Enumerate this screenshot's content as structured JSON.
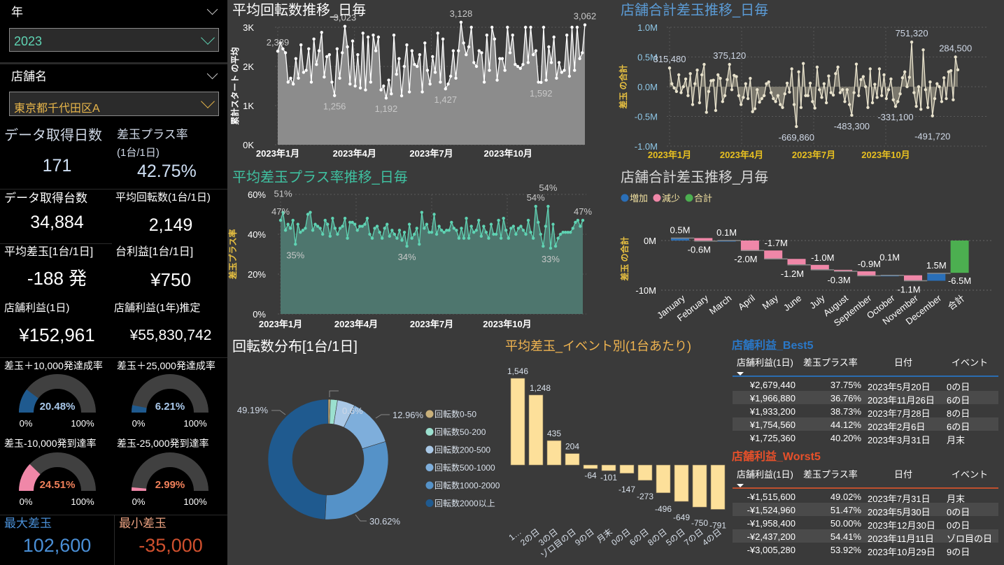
{
  "filters": {
    "year": {
      "label": "年",
      "value": "2023"
    },
    "store": {
      "label": "店舗名",
      "value": "東京都千代田区A"
    }
  },
  "kpis": {
    "days": {
      "label": "データ取得日数",
      "value": "171"
    },
    "plus_rate": {
      "label": "差玉プラス率",
      "sublabel": "(1台/1日)",
      "value": "42.75%"
    },
    "machines": {
      "label": "データ取得台数",
      "value": "34,884"
    },
    "avg_spins": {
      "label": "平均回転数(1台/1日)",
      "value": "2,149"
    },
    "avg_diff": {
      "label": "平均差玉[1台/1日]",
      "value": "-188 発"
    },
    "machine_profit": {
      "label": "台利益[1台/1日]",
      "value": "¥750"
    },
    "store_profit_day": {
      "label": "店舗利益(1日)",
      "value": "¥152,961"
    },
    "store_profit_year": {
      "label": "店舗利益(1年)推定",
      "value": "¥55,830,742"
    }
  },
  "gauges": [
    {
      "title": "差玉＋10,000発達成率",
      "value": "20.48%",
      "fraction": 0.2048,
      "color": "#1f5a8f",
      "text_color": "#a9c8ea",
      "min": "0%",
      "max": "100%"
    },
    {
      "title": "差玉＋25,000発達成率",
      "value": "6.21%",
      "fraction": 0.0621,
      "color": "#1f5a8f",
      "text_color": "#a9c8ea",
      "min": "0%",
      "max": "100%"
    },
    {
      "title": "差玉-10,000発到達率",
      "value": "24.51%",
      "fraction": 0.2451,
      "color": "#f087a8",
      "text_color": "#f0805a",
      "min": "0%",
      "max": "100%"
    },
    {
      "title": "差玉-25,000発到達率",
      "value": "2.99%",
      "fraction": 0.0299,
      "color": "#f087a8",
      "text_color": "#f0805a",
      "min": "0%",
      "max": "100%"
    }
  ],
  "extremes": {
    "max": {
      "label": "最大差玉",
      "value": "102,600"
    },
    "min": {
      "label": "最小差玉",
      "value": "-35,000"
    }
  },
  "chart_data": [
    {
      "type": "line",
      "title": "平均回転数推移_日毎",
      "ylabel": "累計スタート の平均",
      "ylim": [
        0,
        3
      ],
      "yticks": [
        {
          "v": 0,
          "label": "0K"
        },
        {
          "v": 1,
          "label": "1K"
        },
        {
          "v": 2,
          "label": "2K"
        },
        {
          "v": 3,
          "label": "3K"
        }
      ],
      "xticks": [
        {
          "month": 1,
          "label": "2023年1月"
        },
        {
          "month": 4,
          "label": "2023年4月"
        },
        {
          "month": 7,
          "label": "2023年7月"
        },
        {
          "month": 10,
          "label": "2023年10月"
        }
      ],
      "values": [
        2.39,
        2.6,
        2.45,
        2.35,
        1.6,
        1.7,
        1.55,
        2.2,
        1.7,
        2.55,
        1.85,
        1.9,
        2.45,
        1.6,
        2.7,
        2.05,
        2.4,
        2.87,
        1.73,
        2.25,
        2.3,
        1.6,
        1.256,
        2.45,
        1.7,
        2.35,
        3.023,
        2.5,
        1.55,
        2.65,
        1.5,
        2.3,
        1.45,
        2.85,
        1.4,
        2.75,
        1.6,
        2.8,
        2.4,
        2.75,
        1.4,
        1.5,
        1.192,
        1.65,
        1.3,
        2.8,
        1.8,
        2.2,
        1.25,
        2.0,
        2.55,
        1.35,
        2.4,
        2.05,
        2.0,
        2.3,
        1.35,
        2.6,
        1.9,
        1.55,
        2.25,
        1.85,
        2.85,
        1.6,
        2.7,
        1.427,
        1.55,
        1.75,
        2.4,
        1.7,
        2.4,
        3.128,
        2.6,
        2.3,
        2.5,
        3.0,
        2.1,
        2.0,
        2.4,
        2.35,
        1.6,
        2.8,
        1.9,
        3.0,
        2.7,
        1.65,
        2.2,
        2.2,
        1.9,
        3.0,
        2.35,
        2.8,
        2.05,
        2.0,
        1.95,
        2.05,
        3.0,
        2.1,
        3.0,
        2.3,
        2.4,
        1.6,
        1.592,
        3.0,
        1.65,
        2.5,
        2.1,
        2.75,
        1.7,
        2.1,
        1.85,
        1.9,
        2.8,
        1.75,
        3.0,
        1.9,
        3.0,
        2.2,
        2.35,
        3.062
      ],
      "annotations": [
        {
          "i": 0,
          "label": "2,389"
        },
        {
          "i": 26,
          "label": "3,023"
        },
        {
          "i": 22,
          "label": "1,256"
        },
        {
          "i": 42,
          "label": "1,192"
        },
        {
          "i": 65,
          "label": "1,427"
        },
        {
          "i": 71,
          "label": "3,128"
        },
        {
          "i": 102,
          "label": "1,592"
        },
        {
          "i": 119,
          "label": "3,062"
        }
      ],
      "colors": {
        "line": "#ffffff",
        "fill": "#8c8c8c",
        "title": "#ffffff",
        "label": "#c8c8c8",
        "xtick": "#ffffff"
      }
    },
    {
      "type": "line",
      "title": "店舗合計差玉推移_日毎",
      "ylabel": "差玉 の合計",
      "ylim": [
        -1,
        1
      ],
      "yticks": [
        {
          "v": -1,
          "label": "-1.0M"
        },
        {
          "v": -0.5,
          "label": "-0.5M"
        },
        {
          "v": 0,
          "label": "0.0M"
        },
        {
          "v": 0.5,
          "label": "0.5M"
        },
        {
          "v": 1,
          "label": "1.0M"
        }
      ],
      "xticks": [
        {
          "month": 1,
          "label": "2023年1月"
        },
        {
          "month": 4,
          "label": "2023年4月"
        },
        {
          "month": 7,
          "label": "2023年7月"
        },
        {
          "month": 10,
          "label": "2023年10月"
        }
      ],
      "values": [
        0.315,
        0.05,
        -0.02,
        -0.08,
        0.2,
        -0.1,
        0.0,
        0.13,
        -0.15,
        0.22,
        -0.3,
        0.05,
        0.28,
        -0.27,
        0.2,
        0.375,
        -0.43,
        -0.08,
        0.1,
        0.11,
        -0.4,
        0.2,
        0.14,
        -0.25,
        -0.15,
        0.12,
        0.375,
        -0.05,
        0.19,
        0.17,
        -0.15,
        -0.3,
        -0.18,
        0.05,
        -0.2,
        0.14,
        -0.42,
        -0.37,
        -0.05,
        -0.26,
        -0.2,
        -0.15,
        0.05,
        0.08,
        -0.1,
        -0.2,
        -0.25,
        -0.15,
        -0.3,
        -0.35,
        -0.12,
        0.06,
        -0.09,
        0.3,
        -0.3,
        -0.67,
        0.25,
        -0.35,
        0.39,
        -0.15,
        -0.15,
        0.06,
        -0.25,
        -0.36,
        0.33,
        -0.05,
        -0.18,
        0.05,
        -0.27,
        0.18,
        -0.1,
        -0.14,
        0.22,
        0.33,
        -0.1,
        -0.05,
        -0.25,
        -0.05,
        -0.3,
        -0.48,
        -0.1,
        0.38,
        -0.15,
        0.12,
        0.17,
        0.0,
        -0.35,
        0.3,
        -0.27,
        0.04,
        -0.18,
        0.3,
        -0.15,
        0.2,
        -0.2,
        -0.05,
        0.13,
        -0.22,
        -0.331,
        -0.25,
        -0.12,
        0.15,
        0.25,
        0.0,
        0.16,
        0.751,
        -0.1,
        -0.33,
        0.0,
        -0.38,
        0.62,
        -0.05,
        -0.35,
        0.08,
        -0.49,
        -0.2,
        0.05,
        0.0,
        -0.25,
        0.15,
        -0.2,
        0.25,
        0.27,
        -0.22,
        0.5,
        0.2845
      ],
      "annotations": [
        {
          "i": 0,
          "label": "315,480"
        },
        {
          "i": 26,
          "label": "375,120"
        },
        {
          "i": 55,
          "label": "-669,860"
        },
        {
          "i": 79,
          "label": "-483,300"
        },
        {
          "i": 98,
          "label": "-331,100"
        },
        {
          "i": 105,
          "label": "751,320"
        },
        {
          "i": 114,
          "label": "-491,720"
        },
        {
          "i": 124,
          "label": "284,500"
        }
      ],
      "colors": {
        "line": "#e8e2cc",
        "fill": "#7a776c",
        "title": "#5b9bd5",
        "label": "#cfd8e6",
        "xtick": "#e8c020"
      }
    },
    {
      "type": "line",
      "title": "平均差玉プラス率推移_日毎",
      "ylabel": "差玉プラス率",
      "ylim": [
        0,
        60
      ],
      "yticks": [
        {
          "v": 0,
          "label": "0%"
        },
        {
          "v": 20,
          "label": "20%"
        },
        {
          "v": 40,
          "label": "40%"
        },
        {
          "v": 60,
          "label": "60%"
        }
      ],
      "xticks": [
        {
          "month": 1,
          "label": "2023年1月"
        },
        {
          "month": 4,
          "label": "2023年4月"
        },
        {
          "month": 7,
          "label": "2023年7月"
        },
        {
          "month": 10,
          "label": "2023年10月"
        }
      ],
      "values": [
        47,
        51,
        42,
        45,
        43,
        47,
        35,
        45,
        41,
        42,
        43,
        50,
        51,
        42,
        45,
        44,
        43,
        40,
        47,
        45,
        39,
        48,
        43,
        40,
        43,
        44,
        48,
        38,
        46,
        46,
        45,
        42,
        44,
        44,
        45,
        48,
        40,
        38,
        43,
        44,
        41,
        38,
        43,
        45,
        39,
        42,
        40,
        38,
        42,
        37,
        41,
        34,
        45,
        38,
        40,
        43,
        35,
        51,
        43,
        45,
        41,
        41,
        50,
        40,
        44,
        42,
        41,
        42,
        42,
        46,
        43,
        42,
        38,
        43,
        38,
        48,
        38,
        44,
        41,
        42,
        47,
        39,
        44,
        41,
        38,
        45,
        40,
        40,
        47,
        38,
        48,
        42,
        38,
        43,
        44,
        40,
        43,
        44,
        42,
        40,
        47,
        41,
        38,
        54,
        46,
        40,
        34,
        44,
        54,
        33,
        45,
        34,
        38,
        40,
        41,
        41,
        41,
        41,
        43,
        46,
        47,
        44,
        47
      ],
      "annotations": [
        {
          "i": 0,
          "label": "47%"
        },
        {
          "i": 1,
          "label": "51%"
        },
        {
          "i": 6,
          "label": "35%"
        },
        {
          "i": 51,
          "label": "34%"
        },
        {
          "i": 103,
          "label": "54%"
        },
        {
          "i": 108,
          "label": "54%"
        },
        {
          "i": 109,
          "label": "33%"
        },
        {
          "i": 122,
          "label": "47%"
        }
      ],
      "colors": {
        "line": "#5fd3b3",
        "fill": "#4e766e",
        "title": "#3fc0a0",
        "label": "#c8c8c8",
        "xtick": "#ffffff"
      }
    },
    {
      "type": "waterfall",
      "title": "店舗合計差玉推移_月毎",
      "ylabel": "差玉 の合計",
      "legend": [
        {
          "label": "増加",
          "color": "#2a6fb8"
        },
        {
          "label": "減少",
          "color": "#f087a8"
        },
        {
          "label": "合計",
          "color": "#4caf50"
        }
      ],
      "yticks": [
        {
          "v": 0,
          "label": "0M"
        },
        {
          "v": -10,
          "label": "-10M"
        }
      ],
      "categories": [
        "January",
        "February",
        "March",
        "April",
        "May",
        "June",
        "July",
        "August",
        "September",
        "October",
        "November",
        "December",
        "合計"
      ],
      "values": [
        0.5,
        -0.6,
        0.1,
        -2.0,
        -1.7,
        -1.2,
        -1.0,
        -0.3,
        -0.9,
        0.1,
        -1.1,
        1.5,
        -6.5
      ],
      "labels": [
        "0.5M",
        "-0.6M",
        "0.1M",
        "-2.0M",
        "-1.7M",
        "-1.2M",
        "-1.0M",
        "-0.3M",
        "-0.9M",
        "0.1M",
        "-1.1M",
        "1.5M",
        "-6.5M"
      ]
    },
    {
      "type": "pie",
      "title": "回転数分布[1台/1日]",
      "categories": [
        "回転数0-50",
        "回転数50-200",
        "回転数200-500",
        "回転数500-1000",
        "回転数1000-2000",
        "回転数2000以上"
      ],
      "values": [
        0.6,
        1.9,
        4.73,
        12.96,
        30.62,
        49.19
      ],
      "colors": [
        "#c8b07a",
        "#9be0cf",
        "#a9c8e6",
        "#7eaedb",
        "#5592c8",
        "#1f5a8f"
      ],
      "labels": [
        "0.6%",
        "12.96%",
        "30.62%",
        "49.19%"
      ]
    },
    {
      "type": "bar",
      "title": "平均差玉_イベント別(1台あたり)",
      "categories": [
        "1…",
        "2の日",
        "3の日",
        "ゾロ目の日",
        "9の日",
        "月末",
        "0の日",
        "6の日",
        "8の日",
        "5の日",
        "7の日",
        "4の日"
      ],
      "values": [
        1546,
        1248,
        435,
        204,
        -64,
        -101,
        -147,
        -273,
        -496,
        -649,
        -750,
        -791
      ],
      "labels": [
        "1,546",
        "1,248",
        "435",
        "204",
        "-64",
        "-101",
        "-147",
        "-273",
        "-496",
        "-649",
        "-750",
        "-791"
      ],
      "color": "#fde09a"
    }
  ],
  "tables": {
    "best": {
      "title": "店舗利益_Best5",
      "headers": [
        "店舗利益(1日)",
        "差玉プラス率",
        "日付",
        "イベント"
      ],
      "rows": [
        [
          "¥2,679,440",
          "37.75%",
          "2023年5月20日",
          "0の日"
        ],
        [
          "¥1,966,880",
          "36.76%",
          "2023年11月26日",
          "6の日"
        ],
        [
          "¥1,933,200",
          "38.73%",
          "2023年7月28日",
          "8の日"
        ],
        [
          "¥1,754,560",
          "44.12%",
          "2023年2月6日",
          "6の日"
        ],
        [
          "¥1,725,360",
          "40.20%",
          "2023年3月31日",
          "月末"
        ]
      ]
    },
    "worst": {
      "title": "店舗利益_Worst5",
      "headers": [
        "店舗利益(1日)",
        "差玉プラス率",
        "日付",
        "イベント"
      ],
      "rows": [
        [
          "-¥1,515,600",
          "49.02%",
          "2023年7月31日",
          "月末"
        ],
        [
          "-¥1,524,960",
          "51.47%",
          "2023年5月30日",
          "0の日"
        ],
        [
          "-¥1,958,400",
          "50.00%",
          "2023年12月30日",
          "0の日"
        ],
        [
          "-¥2,437,200",
          "54.41%",
          "2023年11月11日",
          "ゾロ目の日"
        ],
        [
          "-¥3,005,280",
          "53.92%",
          "2023年10月29日",
          "9の日"
        ]
      ]
    }
  }
}
